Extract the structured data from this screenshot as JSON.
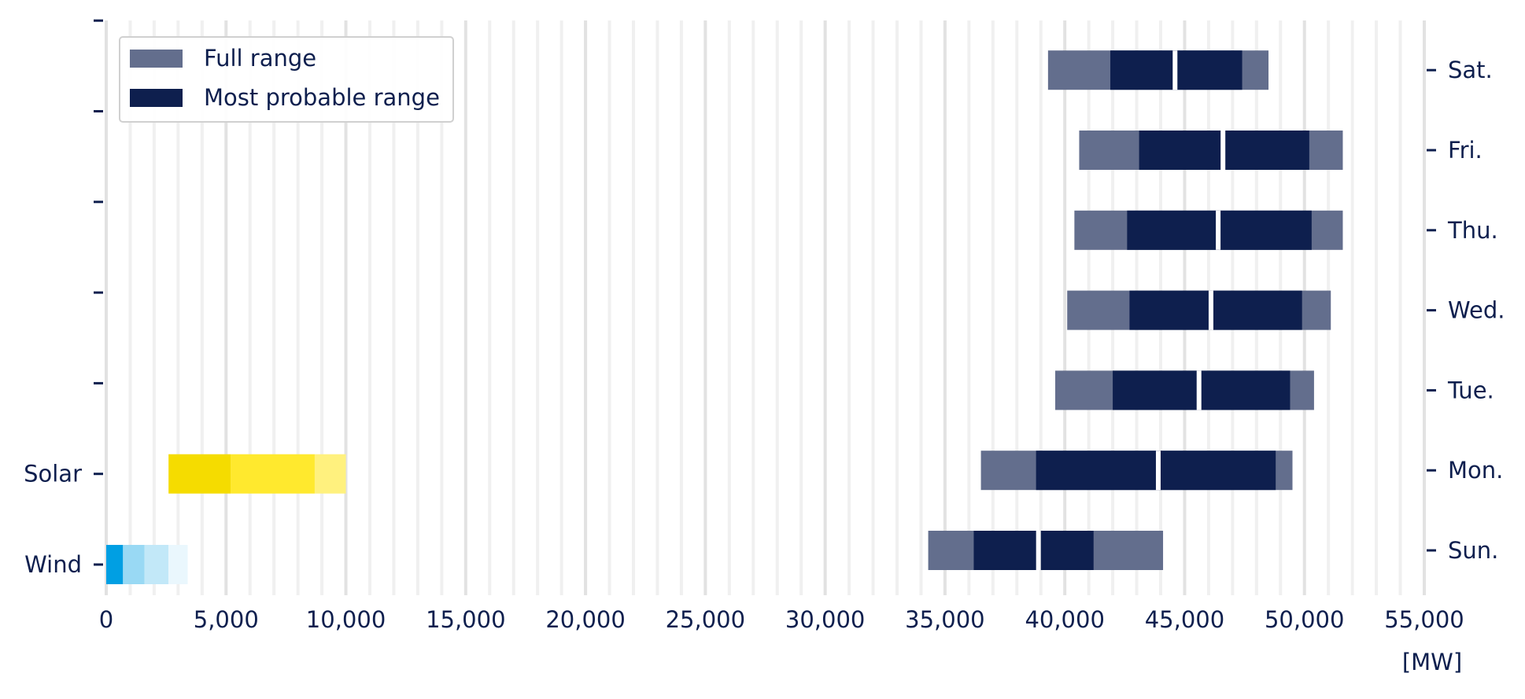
{
  "chart_data": {
    "type": "bar",
    "orientation": "horizontal",
    "xlim": [
      0,
      55000
    ],
    "x_ticks": [
      0,
      5000,
      10000,
      15000,
      20000,
      25000,
      30000,
      35000,
      40000,
      45000,
      50000,
      55000
    ],
    "x_tick_labels": [
      "0",
      "5,000",
      "10,000",
      "15,000",
      "20,000",
      "25,000",
      "30,000",
      "35,000",
      "40,000",
      "45,000",
      "50,000",
      "55,000"
    ],
    "x_unit": "[MW]",
    "grid": true,
    "legend": {
      "position": "top-left",
      "entries": [
        {
          "label": "Full range",
          "color": "#636e8d"
        },
        {
          "label": "Most probable range",
          "color": "#0e1f4e"
        }
      ]
    },
    "left_rows": [
      {
        "label": "Wind",
        "segments": [
          {
            "start": 0,
            "end": 700,
            "color": "#009fe3"
          },
          {
            "start": 700,
            "end": 1600,
            "color": "#99d9f4"
          },
          {
            "start": 1600,
            "end": 2600,
            "color": "#c2e8f8"
          },
          {
            "start": 2600,
            "end": 3400,
            "color": "#eaf7fd"
          }
        ]
      },
      {
        "label": "Solar",
        "segments": [
          {
            "start": 2600,
            "end": 5200,
            "color": "#f5dc00"
          },
          {
            "start": 5200,
            "end": 8700,
            "color": "#ffe92e"
          },
          {
            "start": 8700,
            "end": 10000,
            "color": "#fff17e"
          }
        ]
      },
      {
        "label": "",
        "segments": []
      },
      {
        "label": "",
        "segments": []
      },
      {
        "label": "",
        "segments": []
      },
      {
        "label": "",
        "segments": []
      },
      {
        "label": "",
        "segments": []
      }
    ],
    "right_rows": [
      {
        "label": "Sun.",
        "full": [
          34300,
          44100
        ],
        "probable": [
          36200,
          41200
        ],
        "split": 38900
      },
      {
        "label": "Mon.",
        "full": [
          36500,
          49500
        ],
        "probable": [
          38800,
          48800
        ],
        "split": 43900
      },
      {
        "label": "Tue.",
        "full": [
          39600,
          50400
        ],
        "probable": [
          42000,
          49400
        ],
        "split": 45600
      },
      {
        "label": "Wed.",
        "full": [
          40100,
          51100
        ],
        "probable": [
          42700,
          49900
        ],
        "split": 46100
      },
      {
        "label": "Thu.",
        "full": [
          40400,
          51600
        ],
        "probable": [
          42600,
          50300
        ],
        "split": 46400
      },
      {
        "label": "Fri.",
        "full": [
          40600,
          51600
        ],
        "probable": [
          43100,
          50200
        ],
        "split": 46600
      },
      {
        "label": "Sat.",
        "full": [
          39300,
          48500
        ],
        "probable": [
          41900,
          47400
        ],
        "split": 44600
      }
    ]
  }
}
